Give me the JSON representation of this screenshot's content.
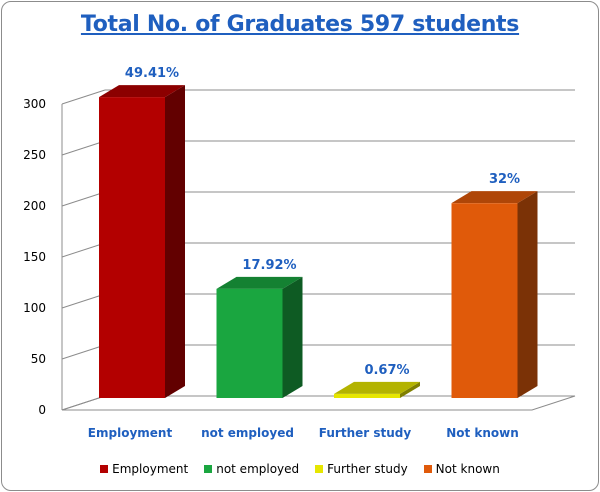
{
  "chart_data": {
    "type": "bar",
    "title": "Total No. of Graduates 597 students",
    "categories": [
      "Employment",
      "not employed",
      "Further study",
      "Not known"
    ],
    "values": [
      295,
      107,
      4,
      191
    ],
    "data_labels": [
      "49.41%",
      "17.92%",
      "0.67%",
      "32%"
    ],
    "colors": [
      "#b30000",
      "#1aa640",
      "#e6e600",
      "#e05a0a"
    ],
    "ylim": [
      0,
      300
    ],
    "yticks": [
      0,
      50,
      100,
      150,
      200,
      250,
      300
    ],
    "grid": true,
    "legend": "bottom",
    "legend_entries": [
      "Employment",
      "not employed",
      "Further study",
      "Not known"
    ]
  }
}
